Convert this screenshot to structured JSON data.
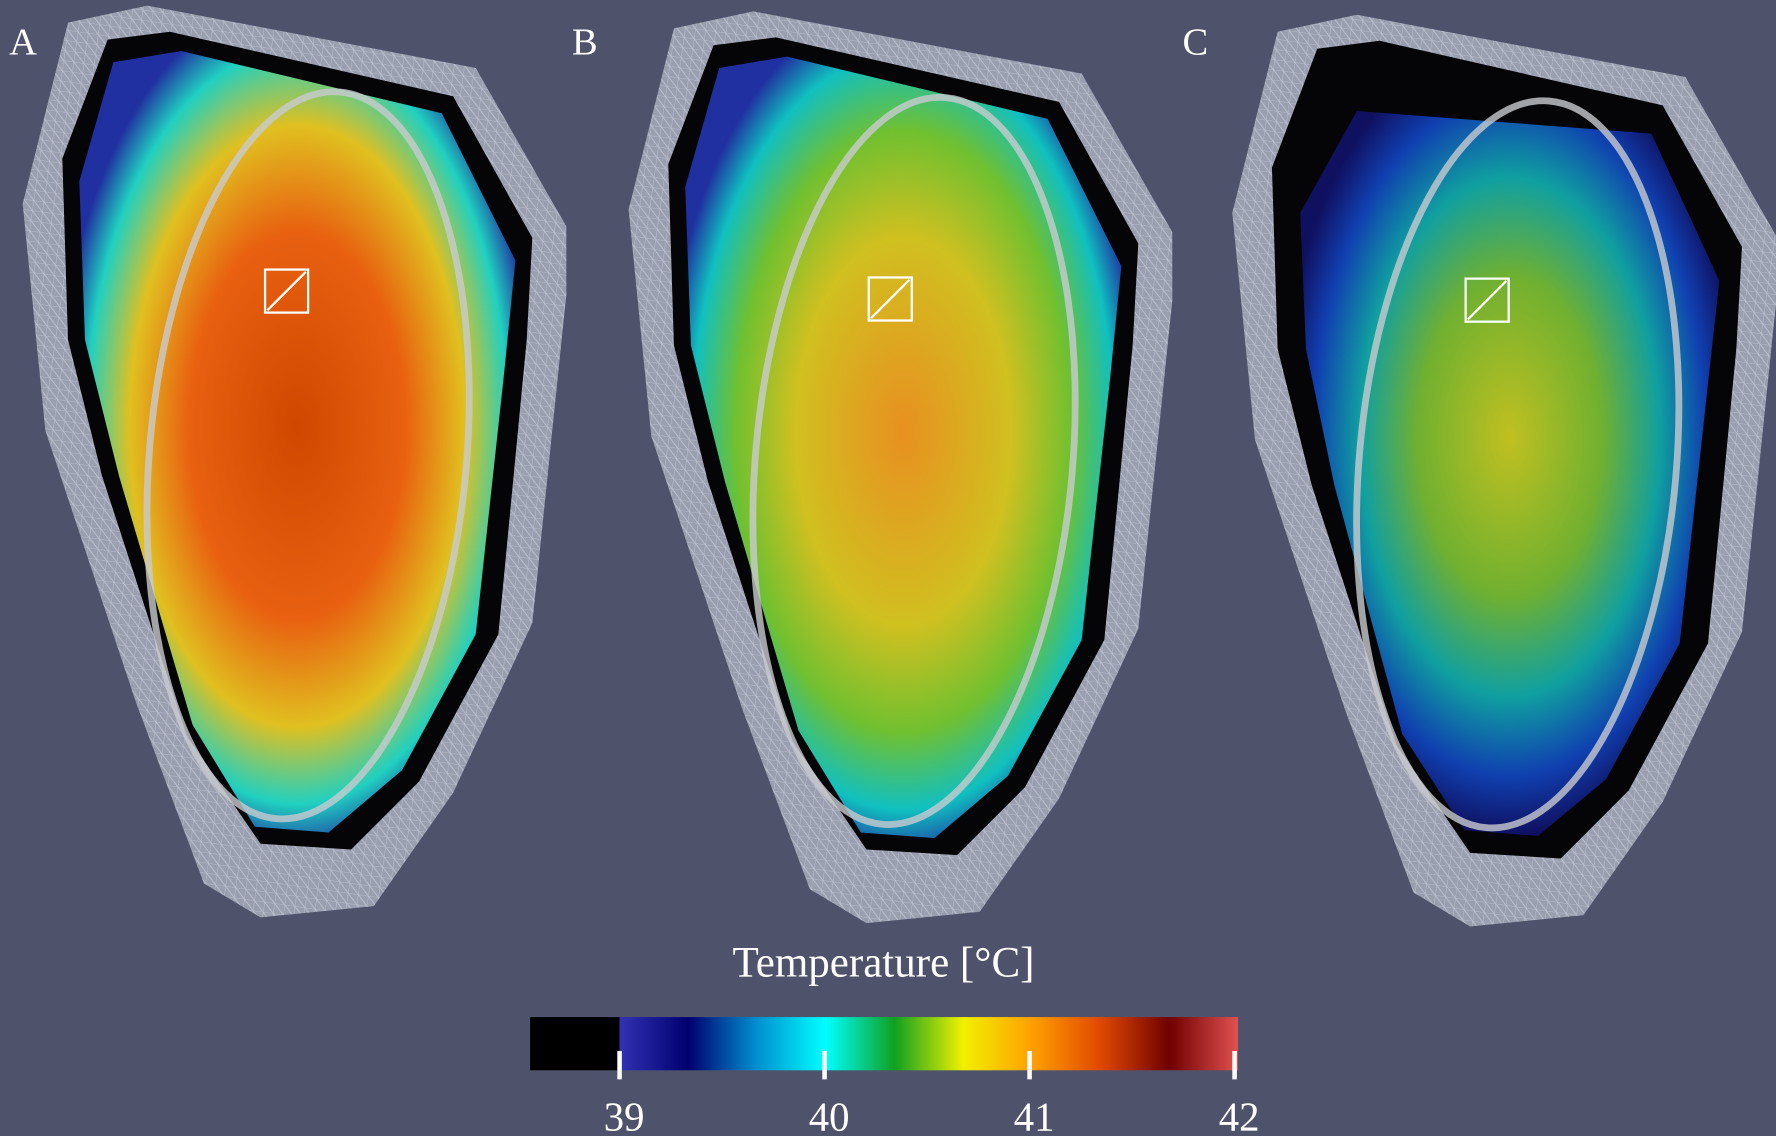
{
  "panels": [
    {
      "label": "A"
    },
    {
      "label": "B"
    },
    {
      "label": "C"
    }
  ],
  "colorbar": {
    "title": "Temperature [°C]",
    "lim": [
      39,
      42
    ],
    "ticks": [
      39,
      40,
      41,
      42
    ],
    "colors": [
      "#3232b4",
      "#000070",
      "#0090d0",
      "#00ffff",
      "#10a020",
      "#f0f000",
      "#ffa000",
      "#e04800",
      "#700000",
      "#e05050"
    ],
    "below_color": "#000000"
  }
}
